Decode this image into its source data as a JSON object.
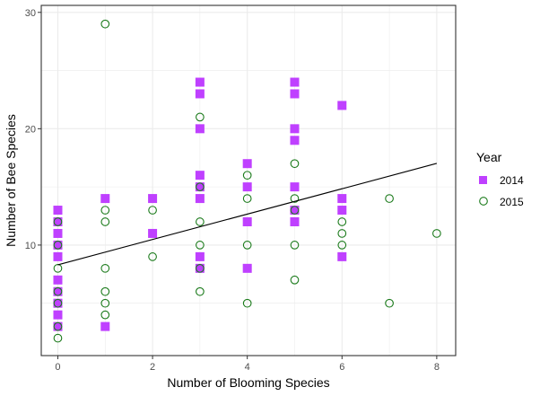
{
  "chart_data": {
    "type": "scatter",
    "xlabel": "Number of Blooming Species",
    "ylabel": "Number of Bee Species",
    "xlim": [
      -0.35,
      8.4
    ],
    "ylim": [
      0.5,
      30.6
    ],
    "x_ticks": [
      0,
      2,
      4,
      6,
      8
    ],
    "y_ticks": [
      10,
      20,
      30
    ],
    "grid": true,
    "legend": {
      "title": "Year",
      "position": "right"
    },
    "colors": {
      "s2014": "#bf40ff",
      "s2015_stroke": "#1a7a1a",
      "line": "#000000",
      "grid": "#ebebeb",
      "panel_border": "#333333"
    },
    "series": [
      {
        "name": "2014",
        "marker": "filled-square",
        "points": [
          [
            0,
            13
          ],
          [
            0,
            12
          ],
          [
            0,
            11
          ],
          [
            0,
            10
          ],
          [
            0,
            9
          ],
          [
            0,
            7
          ],
          [
            0,
            6
          ],
          [
            0,
            5
          ],
          [
            0,
            4
          ],
          [
            0,
            3
          ],
          [
            1,
            14
          ],
          [
            1,
            3
          ],
          [
            2,
            14
          ],
          [
            2,
            11
          ],
          [
            3,
            24
          ],
          [
            3,
            23
          ],
          [
            3,
            20
          ],
          [
            3,
            16
          ],
          [
            3,
            15
          ],
          [
            3,
            14
          ],
          [
            3,
            9
          ],
          [
            3,
            8
          ],
          [
            4,
            17
          ],
          [
            4,
            15
          ],
          [
            4,
            12
          ],
          [
            4,
            8
          ],
          [
            5,
            24
          ],
          [
            5,
            23
          ],
          [
            5,
            20
          ],
          [
            5,
            19
          ],
          [
            5,
            15
          ],
          [
            5,
            13
          ],
          [
            5,
            12
          ],
          [
            6,
            22
          ],
          [
            6,
            14
          ],
          [
            6,
            13
          ],
          [
            6,
            9
          ]
        ]
      },
      {
        "name": "2015",
        "marker": "open-circle",
        "points": [
          [
            0,
            12
          ],
          [
            0,
            10
          ],
          [
            0,
            8
          ],
          [
            0,
            6
          ],
          [
            0,
            5
          ],
          [
            0,
            3
          ],
          [
            0,
            2
          ],
          [
            1,
            29
          ],
          [
            1,
            13
          ],
          [
            1,
            12
          ],
          [
            1,
            8
          ],
          [
            1,
            6
          ],
          [
            1,
            5
          ],
          [
            1,
            4
          ],
          [
            2,
            13
          ],
          [
            2,
            9
          ],
          [
            3,
            21
          ],
          [
            3,
            15
          ],
          [
            3,
            12
          ],
          [
            3,
            10
          ],
          [
            3,
            8
          ],
          [
            3,
            6
          ],
          [
            4,
            16
          ],
          [
            4,
            14
          ],
          [
            4,
            10
          ],
          [
            4,
            5
          ],
          [
            5,
            17
          ],
          [
            5,
            14
          ],
          [
            5,
            13
          ],
          [
            5,
            10
          ],
          [
            5,
            7
          ],
          [
            6,
            12
          ],
          [
            6,
            11
          ],
          [
            6,
            10
          ],
          [
            7,
            14
          ],
          [
            7,
            5
          ],
          [
            8,
            11
          ]
        ]
      }
    ],
    "trend_line": {
      "intercept": 8.3,
      "slope": 1.09,
      "x_range": [
        0,
        8
      ]
    }
  }
}
